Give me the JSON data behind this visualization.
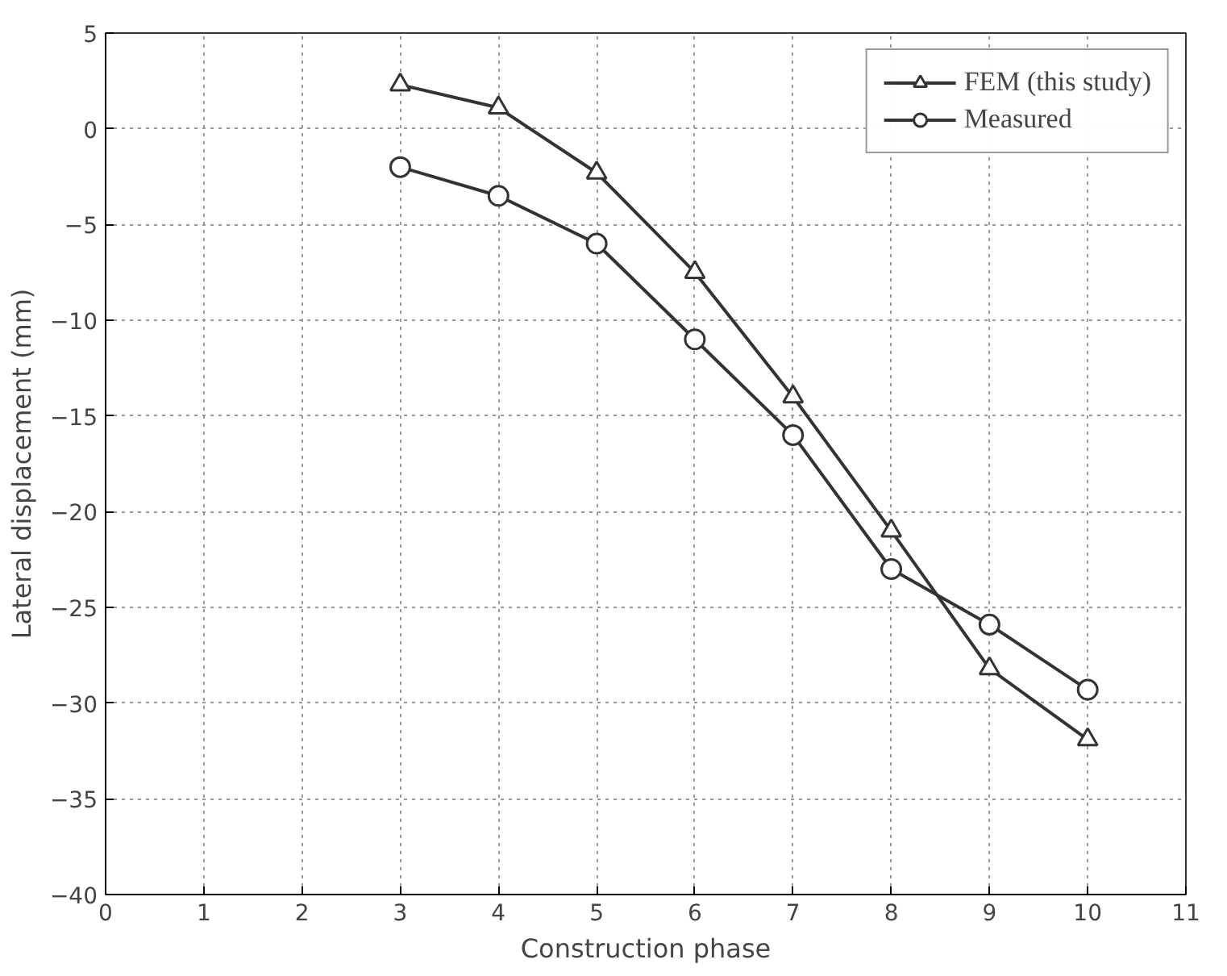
{
  "chart_data": {
    "type": "line",
    "xlabel": "Construction phase",
    "ylabel": "Lateral displacement (mm)",
    "x": [
      3,
      4,
      5,
      6,
      7,
      8,
      9,
      10
    ],
    "series": [
      {
        "name": "FEM (this study)",
        "color": "#333333",
        "marker": "triangle",
        "values": [
          2.3,
          1.1,
          -2.3,
          -7.5,
          -14,
          -21,
          -28.2,
          -31.9
        ]
      },
      {
        "name": "Measured",
        "color": "#333333",
        "marker": "circle",
        "values": [
          -2.0,
          -3.5,
          -6.0,
          -11,
          -16,
          -23,
          -25.9,
          -29.3
        ]
      }
    ],
    "xlim": [
      0,
      11
    ],
    "xticks": [
      0,
      1,
      2,
      3,
      4,
      5,
      6,
      7,
      8,
      9,
      10,
      11
    ],
    "ylim": [
      -40,
      5
    ],
    "yticks": [
      -40,
      -35,
      -30,
      -25,
      -20,
      -15,
      -10,
      -5,
      0,
      5
    ],
    "grid": true,
    "legend": "top right",
    "line_style": "solid"
  }
}
